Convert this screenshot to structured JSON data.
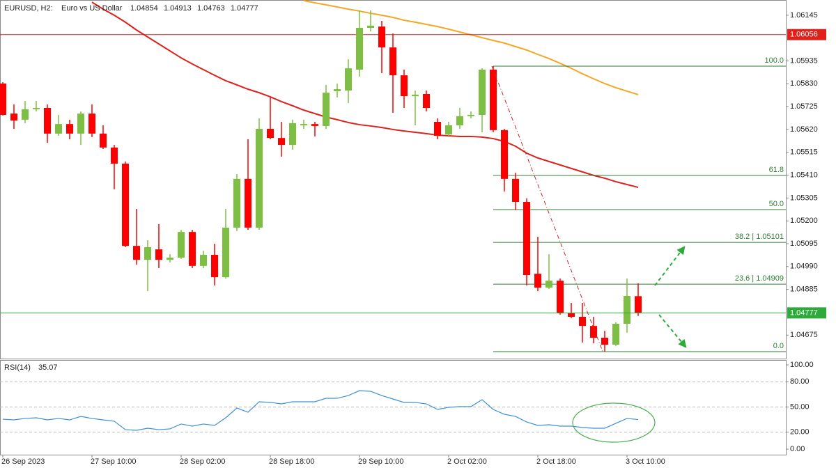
{
  "chart_data": {
    "type": "candlestick",
    "symbol": "EURUSD, H2:",
    "description": "Euro vs US Dollar",
    "categories": [
      "26 Sep 2023",
      null,
      null,
      null,
      null,
      null,
      null,
      null,
      "27 Sep 10:00",
      null,
      null,
      null,
      null,
      null,
      null,
      null,
      "28 Sep 02:00",
      null,
      null,
      null,
      null,
      null,
      null,
      null,
      "28 Sep 18:00",
      null,
      null,
      null,
      null,
      null,
      null,
      null,
      "29 Sep 10:00",
      null,
      null,
      null,
      null,
      null,
      null,
      null,
      "2 Oct 02:00",
      null,
      null,
      null,
      null,
      null,
      null,
      null,
      "2 Oct 18:00",
      null,
      null,
      null,
      null,
      null,
      null,
      null,
      "3 Oct 10:00",
      null
    ],
    "open": [
      1.05831,
      1.05693,
      1.05665,
      1.05713,
      1.05719,
      1.05601,
      1.05645,
      1.05601,
      1.05693,
      1.05601,
      1.05537,
      1.05463,
      1.05085,
      1.05021,
      1.05069,
      1.05021,
      1.05031,
      1.05149,
      1.04993,
      1.05044,
      1.04941,
      1.05169,
      1.05393,
      1.05169,
      1.05623,
      1.05581,
      1.05549,
      1.05639,
      1.05645,
      1.05636,
      1.05796,
      1.05799,
      1.05895,
      1.06087,
      1.06093,
      1.05997,
      1.05869,
      1.05773,
      1.05783,
      1.05655,
      1.05597,
      1.05639,
      1.05681,
      1.05687,
      1.05895,
      1.05617,
      1.05393,
      1.05287,
      1.04957,
      1.04893,
      1.04925,
      1.04775,
      1.04759,
      1.04717,
      1.04663,
      1.04631,
      1.04727,
      1.04854
    ],
    "high": [
      1.05837,
      1.05735,
      1.05751,
      1.05751,
      1.05735,
      1.05687,
      1.05665,
      1.05703,
      1.05735,
      1.05639,
      1.05549,
      1.05473,
      1.05255,
      1.05111,
      1.05185,
      1.05047,
      1.05159,
      1.05159,
      1.05063,
      1.05095,
      1.05255,
      1.05415,
      1.05575,
      1.05671,
      1.05767,
      1.05655,
      1.05665,
      1.05665,
      1.05655,
      1.05825,
      1.05831,
      1.05943,
      1.06167,
      1.06167,
      1.06119,
      1.06061,
      1.05895,
      1.05799,
      1.05799,
      1.05671,
      1.05655,
      1.05719,
      1.05703,
      1.05901,
      1.05911,
      1.05623,
      1.05421,
      1.05303,
      1.05127,
      1.05047,
      1.04935,
      1.04823,
      1.04823,
      1.04759,
      1.04695,
      1.04734,
      1.04935,
      1.04913
    ],
    "low": [
      1.05684,
      1.05623,
      1.05649,
      1.05703,
      1.05559,
      1.05591,
      1.05575,
      1.05549,
      1.05585,
      1.0553,
      1.05345,
      1.05079,
      1.04999,
      1.04877,
      1.04983,
      1.05009,
      1.05025,
      1.04983,
      1.04983,
      1.04903,
      1.04935,
      1.05153,
      1.05159,
      1.05159,
      1.05575,
      1.05495,
      1.05527,
      1.05623,
      1.05588,
      1.05623,
      1.05767,
      1.05741,
      1.05863,
      1.06071,
      1.05879,
      1.05697,
      1.05719,
      1.05639,
      1.05703,
      1.05575,
      1.05591,
      1.05623,
      1.05671,
      1.05607,
      1.05607,
      1.05335,
      1.05249,
      1.04903,
      1.04877,
      1.04887,
      1.04769,
      1.04753,
      1.04641,
      1.04637,
      1.04599,
      1.04625,
      1.04686,
      1.04763
    ],
    "close": [
      1.05687,
      1.05661,
      1.05713,
      1.05719,
      1.05601,
      1.05645,
      1.05601,
      1.05693,
      1.05601,
      1.05537,
      1.05463,
      1.05085,
      1.05021,
      1.05079,
      1.05021,
      1.05031,
      1.05149,
      1.04993,
      1.05044,
      1.04941,
      1.05169,
      1.05393,
      1.05169,
      1.05623,
      1.05581,
      1.05549,
      1.05649,
      1.05645,
      1.05636,
      1.05789,
      1.05805,
      1.05901,
      1.06087,
      1.06097,
      1.05997,
      1.05869,
      1.05773,
      1.0578,
      1.05719,
      1.05591,
      1.05639,
      1.05681,
      1.05687,
      1.05895,
      1.05617,
      1.05393,
      1.05287,
      1.04951,
      1.04893,
      1.04925,
      1.04775,
      1.04759,
      1.04717,
      1.04663,
      1.04631,
      1.04727,
      1.04855,
      1.04777
    ],
    "up_color": "#7cbf42",
    "down_color": "#ff0000",
    "ylim": [
      1.04567,
      1.06215
    ],
    "yticks": [
      {
        "value": 1.06145,
        "label": "1.06145"
      },
      {
        "value": 1.05935,
        "label": "1.05935"
      },
      {
        "value": 1.0583,
        "label": "1.05830"
      },
      {
        "value": 1.05725,
        "label": "1.05725"
      },
      {
        "value": 1.0562,
        "label": "1.05620"
      },
      {
        "value": 1.05515,
        "label": "1.05515"
      },
      {
        "value": 1.0541,
        "label": "1.05410"
      },
      {
        "value": 1.05305,
        "label": "1.05305"
      },
      {
        "value": 1.052,
        "label": "1.05200"
      },
      {
        "value": 1.05095,
        "label": "1.05095"
      },
      {
        "value": 1.0499,
        "label": "1.04990"
      },
      {
        "value": 1.04885,
        "label": "1.04885"
      },
      {
        "value": 1.04675,
        "label": "1.04675"
      }
    ],
    "moving_averages": [
      {
        "color": "#e0201b",
        "values": [
          null,
          null,
          null,
          null,
          null,
          null,
          null,
          null,
          1.06205,
          1.06173,
          1.06145,
          1.06113,
          1.06077,
          1.06045,
          1.06013,
          1.05981,
          1.05949,
          1.05921,
          1.05895,
          1.05869,
          1.05844,
          1.05825,
          1.05805,
          1.05789,
          1.0577,
          1.05748,
          1.05729,
          1.05709,
          1.05693,
          1.05677,
          1.05665,
          1.05652,
          1.05642,
          1.05636,
          1.05629,
          1.0562,
          1.05613,
          1.05607,
          1.05601,
          1.05594,
          1.05591,
          1.05588,
          1.05588,
          1.05585,
          1.05578,
          1.05565,
          1.05543,
          1.05511,
          1.05489,
          1.05473,
          1.05457,
          1.05441,
          1.05425,
          1.05409,
          1.05396,
          1.0538,
          1.05367,
          1.05354
        ]
      },
      {
        "color": "#f5a623",
        "values": [
          null,
          null,
          null,
          null,
          null,
          null,
          null,
          null,
          null,
          null,
          null,
          null,
          null,
          null,
          null,
          null,
          null,
          null,
          null,
          null,
          null,
          null,
          null,
          null,
          null,
          null,
          null,
          1.06212,
          1.06202,
          1.06193,
          1.06183,
          1.06173,
          1.06164,
          1.06154,
          1.06145,
          1.06135,
          1.06122,
          1.06113,
          1.06103,
          1.06093,
          1.06081,
          1.06068,
          1.06055,
          1.06042,
          1.06029,
          1.06017,
          1.06001,
          1.05985,
          1.05965,
          1.05946,
          1.05924,
          1.05901,
          1.05876,
          1.05853,
          1.05831,
          1.05812,
          1.05796,
          1.0578
        ]
      }
    ],
    "level_line": {
      "value": 1.06056,
      "color": "#e0201b"
    },
    "current_price_color": "#2eaa3a",
    "fibonacci": {
      "color": "#2e7d32",
      "levels": [
        {
          "label": "100.0",
          "value": 1.05911
        },
        {
          "label": "61.8",
          "value": 1.05409
        },
        {
          "label": "50.0",
          "value": 1.05252
        },
        {
          "label": "38.2 | 1.05101",
          "value": 1.05101
        },
        {
          "label": "23.6 | 1.04909",
          "value": 1.04909
        },
        {
          "label": "0.0",
          "value": 1.04599
        }
      ]
    },
    "rsi": {
      "title": "RSI(14)",
      "color": "#3b8fd9",
      "values": [
        35.5,
        34.7,
        36.4,
        37.2,
        34.7,
        36.4,
        34.7,
        38.8,
        36.4,
        34.7,
        33.1,
        23.1,
        22.3,
        24.8,
        23.1,
        24.0,
        29.8,
        27.3,
        29.8,
        28.1,
        37.2,
        48.8,
        43.8,
        56.2,
        55.4,
        53.7,
        56.2,
        56.2,
        56.2,
        60.3,
        60.3,
        63.6,
        69.4,
        68.6,
        63.6,
        59.5,
        55.4,
        55.4,
        53.7,
        47.1,
        49.6,
        50.4,
        50.4,
        58.7,
        47.1,
        41.3,
        38.8,
        32.2,
        28.1,
        28.9,
        27.3,
        27.3,
        25.6,
        24.8,
        24.8,
        30.6,
        36.4,
        35.07
      ],
      "ylim": [
        0,
        100
      ],
      "yticks": [
        {
          "value": 100,
          "label": "100.00"
        },
        {
          "value": 80,
          "label": "80.00"
        },
        {
          "value": 50,
          "label": "50.00"
        },
        {
          "value": 20,
          "label": "20.00"
        },
        {
          "value": 0,
          "label": "0.00"
        }
      ],
      "grid": true
    }
  }
}
